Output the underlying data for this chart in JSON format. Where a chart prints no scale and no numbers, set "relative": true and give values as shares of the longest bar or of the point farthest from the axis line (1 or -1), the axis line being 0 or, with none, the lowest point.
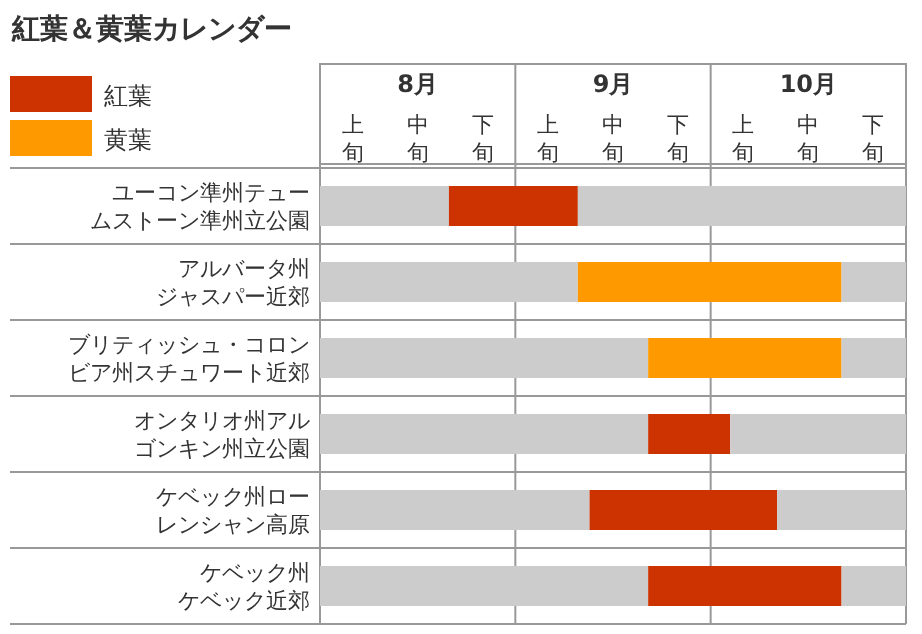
{
  "chart_data": {
    "type": "bar",
    "orientation": "horizontal",
    "relative": true,
    "title": "紅葉＆黄葉カレンダー",
    "categories": [
      "ユーコン準州テュームストーン準州立公園",
      "アルバータ州ジャスパー近郊",
      "ブリティッシュ・コロンビア州スチュワート近郊",
      "オンタリオ州アルゴンキン州立公園",
      "ケベック州ローレンシャン高原",
      "ケベック州ケベック近郊"
    ],
    "series": [
      {
        "color": "#cccccc",
        "values": [
          0.22,
          0.44,
          0.56,
          0.56,
          0.46,
          0.56
        ]
      },
      {
        "name": "紅葉",
        "color": "#cc3300",
        "values": [
          0.22,
          null,
          null,
          0.14,
          0.32,
          0.33
        ]
      },
      {
        "name": "黄葉",
        "color": "#ff9900",
        "values": [
          null,
          0.45,
          0.33,
          null,
          null,
          null
        ]
      },
      {
        "color": "#cccccc",
        "values": [
          0.56,
          0.11,
          0.11,
          0.3,
          0.22,
          0.11
        ]
      }
    ],
    "stacked": true,
    "annotations": [
      "8月",
      "9月",
      "10月",
      "上旬",
      "中旬",
      "下旬",
      "上旬",
      "中旬",
      "下旬",
      "上旬",
      "中旬",
      "下旬"
    ],
    "legend": "top left"
  }
}
